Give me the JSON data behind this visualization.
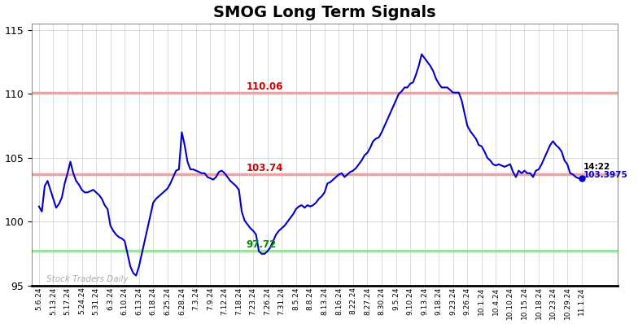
{
  "title": "SMOG Long Term Signals",
  "title_fontsize": 14,
  "title_fontweight": "bold",
  "background_color": "#ffffff",
  "grid_color": "#cccccc",
  "line_color": "#0000cc",
  "line_width": 1.5,
  "ylim": [
    95,
    115.5
  ],
  "yticks": [
    95,
    100,
    105,
    110,
    115
  ],
  "hline_upper": 110.06,
  "hline_mid": 103.74,
  "hline_lower": 97.72,
  "hline_upper_color": "#f4a0a0",
  "hline_mid_color": "#f4a0a0",
  "hline_lower_color": "#90ee90",
  "hline_upper_label": "110.06",
  "hline_upper_label_color": "#cc0000",
  "hline_mid_label": "103.74",
  "hline_mid_label_color": "#cc0000",
  "hline_lower_label": "97.72",
  "hline_lower_label_color": "#008800",
  "watermark": "Stock Traders Daily",
  "watermark_color": "#aaaaaa",
  "last_label_time": "14:22",
  "last_label_price": "103.3975",
  "last_dot_color": "#0000cc",
  "xlabel_fontsize": 6.5,
  "x_labels": [
    "5.6.24",
    "5.13.24",
    "5.17.24",
    "5.24.24",
    "5.31.24",
    "6.3.24",
    "6.10.24",
    "6.13.24",
    "6.18.24",
    "6.25.24",
    "6.28.24",
    "7.3.24",
    "7.9.24",
    "7.12.24",
    "7.18.24",
    "7.23.24",
    "7.26.24",
    "7.31.24",
    "8.5.24",
    "8.8.24",
    "8.13.24",
    "8.16.24",
    "8.22.24",
    "8.27.24",
    "8.30.24",
    "9.5.24",
    "9.10.24",
    "9.13.24",
    "9.18.24",
    "9.23.24",
    "9.26.24",
    "10.1.24",
    "10.4.24",
    "10.10.24",
    "10.15.24",
    "10.18.24",
    "10.23.24",
    "10.29.24",
    "11.1.24"
  ],
  "dense_y": [
    101.2,
    100.8,
    102.8,
    103.2,
    102.5,
    101.8,
    101.1,
    101.4,
    101.9,
    103.0,
    103.8,
    104.7,
    103.8,
    103.2,
    102.9,
    102.5,
    102.3,
    102.3,
    102.4,
    102.5,
    102.3,
    102.1,
    101.8,
    101.3,
    101.0,
    99.7,
    99.3,
    99.0,
    98.8,
    98.7,
    98.5,
    97.5,
    96.5,
    96.0,
    95.8,
    96.5,
    97.5,
    98.5,
    99.5,
    100.5,
    101.5,
    101.8,
    102.0,
    102.2,
    102.4,
    102.6,
    103.0,
    103.5,
    104.0,
    104.1,
    107.0,
    106.0,
    104.7,
    104.1,
    104.1,
    104.0,
    103.9,
    103.8,
    103.8,
    103.5,
    103.4,
    103.3,
    103.5,
    103.9,
    104.0,
    103.8,
    103.5,
    103.2,
    103.0,
    102.8,
    102.5,
    100.8,
    100.1,
    99.8,
    99.5,
    99.3,
    99.0,
    97.7,
    97.5,
    97.5,
    97.7,
    98.0,
    98.5,
    99.0,
    99.3,
    99.5,
    99.7,
    100.0,
    100.3,
    100.6,
    101.0,
    101.2,
    101.3,
    101.1,
    101.3,
    101.2,
    101.3,
    101.5,
    101.8,
    102.0,
    102.3,
    103.0,
    103.1,
    103.3,
    103.5,
    103.7,
    103.8,
    103.5,
    103.7,
    103.9,
    104.0,
    104.2,
    104.5,
    104.8,
    105.2,
    105.4,
    105.8,
    106.3,
    106.5,
    106.6,
    107.0,
    107.5,
    108.0,
    108.5,
    109.0,
    109.5,
    110.0,
    110.2,
    110.5,
    110.5,
    110.8,
    110.9,
    111.5,
    112.2,
    113.1,
    112.8,
    112.5,
    112.2,
    111.8,
    111.2,
    110.8,
    110.5,
    110.5,
    110.5,
    110.3,
    110.1,
    110.1,
    110.1,
    109.5,
    108.5,
    107.5,
    107.1,
    106.8,
    106.5,
    106.0,
    105.9,
    105.5,
    105.0,
    104.8,
    104.5,
    104.4,
    104.5,
    104.4,
    104.3,
    104.4,
    104.5,
    103.9,
    103.5,
    104.0,
    103.8,
    104.0,
    103.8,
    103.8,
    103.5,
    104.0,
    104.1,
    104.5,
    105.0,
    105.5,
    106.0,
    106.3,
    106.0,
    105.8,
    105.5,
    104.8,
    104.5,
    103.8,
    103.7,
    103.5,
    103.4,
    103.3975
  ]
}
